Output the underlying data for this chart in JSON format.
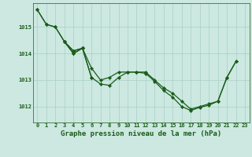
{
  "background_color": "#cce8e0",
  "grid_color": "#a8cfc8",
  "line_color": "#1a5c1a",
  "marker_color": "#1a5c1a",
  "xlabel": "Graphe pression niveau de la mer (hPa)",
  "xlabel_fontsize": 6.5,
  "ylabel_ticks": [
    1012,
    1013,
    1014,
    1015
  ],
  "xlim": [
    -0.5,
    23.5
  ],
  "ylim": [
    1011.4,
    1015.9
  ],
  "xticks": [
    0,
    1,
    2,
    3,
    4,
    5,
    6,
    7,
    8,
    9,
    10,
    11,
    12,
    13,
    14,
    15,
    16,
    17,
    18,
    19,
    20,
    21,
    22,
    23
  ],
  "line1_x": [
    0,
    1,
    2,
    3,
    4,
    5,
    6,
    7,
    8,
    9,
    10,
    11,
    12,
    13,
    14,
    15,
    16,
    17,
    18,
    19,
    20,
    21,
    22
  ],
  "line1_y": [
    1015.65,
    1015.1,
    1015.0,
    1014.45,
    1014.1,
    1014.2,
    1013.1,
    1012.85,
    1012.8,
    1013.1,
    1013.3,
    1013.3,
    1013.3,
    1013.0,
    1012.7,
    1012.5,
    1012.2,
    1011.9,
    1012.0,
    1012.1,
    1012.2,
    1013.1,
    1013.7
  ],
  "line2_x": [
    0,
    1,
    2,
    3,
    4,
    5,
    6,
    7,
    8,
    9,
    10,
    11,
    12,
    13,
    14,
    15,
    16,
    17,
    18,
    19,
    20,
    21,
    22
  ],
  "line2_y": [
    1015.65,
    1015.1,
    1015.0,
    1014.45,
    1014.0,
    1014.2,
    1013.45,
    1013.0,
    1013.1,
    1013.3,
    1013.3,
    1013.3,
    1013.25,
    1012.95,
    1012.6,
    1012.35,
    1012.0,
    1011.85,
    1011.97,
    1012.05,
    1012.2,
    1013.1,
    1013.7
  ],
  "line3_x": [
    3,
    4,
    5
  ],
  "line3_y": [
    1014.45,
    1014.0,
    1014.2
  ],
  "line4_x": [
    3,
    4,
    5,
    6
  ],
  "line4_y": [
    1014.45,
    1014.1,
    1014.2,
    1013.1
  ],
  "tick_fontsize": 5.0
}
